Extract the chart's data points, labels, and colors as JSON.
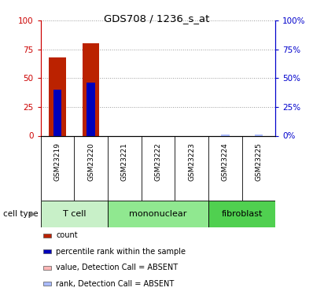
{
  "title": "GDS708 / 1236_s_at",
  "samples": [
    "GSM23219",
    "GSM23220",
    "GSM23221",
    "GSM23222",
    "GSM23223",
    "GSM23224",
    "GSM23225"
  ],
  "count_values": [
    68,
    80,
    0,
    0,
    0,
    0,
    0
  ],
  "percentile_values": [
    40,
    46,
    0,
    0,
    0,
    1,
    1
  ],
  "absent_count": [
    false,
    false,
    true,
    true,
    true,
    false,
    false
  ],
  "absent_rank": [
    false,
    false,
    false,
    false,
    false,
    true,
    true
  ],
  "cell_types": [
    {
      "label": "T cell",
      "start": 0,
      "end": 2,
      "color": "#C8F0C8"
    },
    {
      "label": "mononuclear",
      "start": 2,
      "end": 5,
      "color": "#90E890"
    },
    {
      "label": "fibroblast",
      "start": 5,
      "end": 7,
      "color": "#50D050"
    }
  ],
  "ylim": [
    0,
    100
  ],
  "bar_color_count": "#BB2200",
  "bar_color_rank": "#0000BB",
  "bar_color_absent_count": "#FFB6B6",
  "bar_color_absent_rank": "#AABBFF",
  "bar_width": 0.5,
  "grid_color": "#999999",
  "yticks": [
    0,
    25,
    50,
    75,
    100
  ],
  "tick_color_left": "#CC0000",
  "tick_color_right": "#0000CC",
  "bg_sample_color": "#CCCCCC",
  "legend_items": [
    {
      "color": "#BB2200",
      "label": "count"
    },
    {
      "color": "#0000BB",
      "label": "percentile rank within the sample"
    },
    {
      "color": "#FFB6B6",
      "label": "value, Detection Call = ABSENT"
    },
    {
      "color": "#AABBFF",
      "label": "rank, Detection Call = ABSENT"
    }
  ]
}
